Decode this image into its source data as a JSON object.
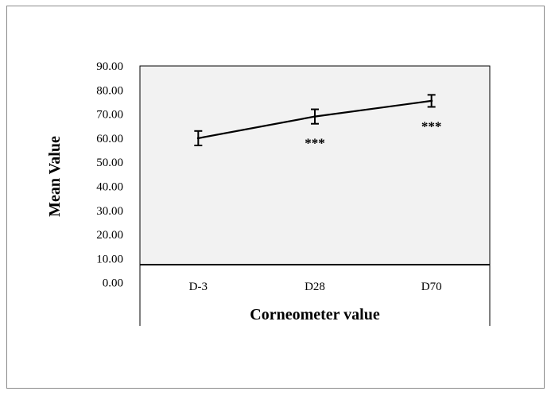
{
  "chart_data": {
    "type": "line",
    "categories": [
      "D-3",
      "D28",
      "D70"
    ],
    "series": [
      {
        "values": [
          60.0,
          69.0,
          75.5
        ],
        "error": [
          3.0,
          3.0,
          2.5
        ],
        "color": "#000000"
      }
    ],
    "annotations": [
      {
        "category": "D28",
        "text": "***"
      },
      {
        "category": "D70",
        "text": "***"
      }
    ],
    "y_ticks": [
      "90.00",
      "80.00",
      "70.00",
      "60.00",
      "50.00",
      "40.00",
      "30.00",
      "20.00",
      "10.00",
      "0.00"
    ],
    "xlabel": "Corneometer value",
    "ylabel": "Mean Value",
    "ylim": [
      0,
      90
    ],
    "grid": false,
    "plot_background": "#f2f2f2"
  }
}
